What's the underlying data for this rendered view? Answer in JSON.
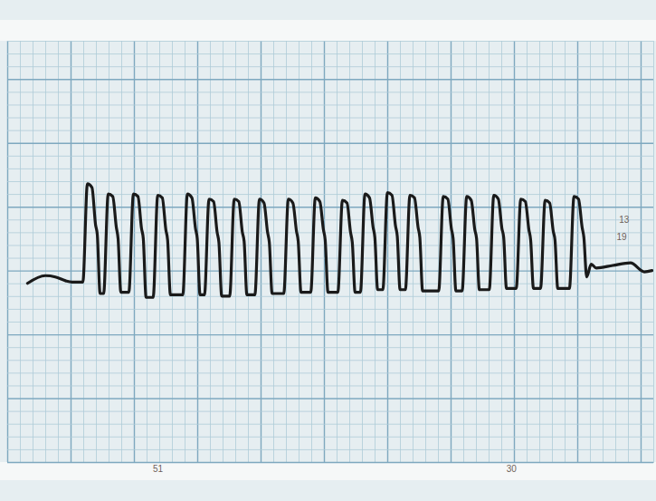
{
  "chart_data": {
    "type": "line",
    "x": [
      1.6,
      3.0,
      3.8,
      4.6,
      5.1,
      5.97,
      6.33,
      6.69,
      6.97,
      7.11,
      7.33,
      7.61,
      7.97,
      8.33,
      8.61,
      8.75,
      8.97,
      9.6,
      9.96,
      10.32,
      10.6,
      10.74,
      10.96,
      11.52,
      11.88,
      12.24,
      12.52,
      12.66,
      12.88,
      13.86,
      14.22,
      14.58,
      14.86,
      15.0,
      15.22,
      15.57,
      15.93,
      16.29,
      16.57,
      16.71,
      16.93,
      17.56,
      17.92,
      18.28,
      18.56,
      18.7,
      18.92,
      19.55,
      19.91,
      20.27,
      20.55,
      20.69,
      20.91,
      21.83,
      22.19,
      22.55,
      22.83,
      22.97,
      23.19,
      23.96,
      24.32,
      24.68,
      24.96,
      25.1,
      25.32,
      26.1,
      26.46,
      26.82,
      27.1,
      27.24,
      27.46,
      27.88,
      28.24,
      28.6,
      28.88,
      29.02,
      29.24,
      29.65,
      30.01,
      30.37,
      30.65,
      30.79,
      31.01,
      31.43,
      31.79,
      32.15,
      32.43,
      32.57,
      32.79,
      34.06,
      34.42,
      34.78,
      35.06,
      35.2,
      35.42,
      35.91,
      36.27,
      36.63,
      36.91,
      37.05,
      37.27,
      38.05,
      38.41,
      38.77,
      39.05,
      39.19,
      39.41,
      40.18,
      40.54,
      40.9,
      41.18,
      41.32,
      41.54,
      42.1,
      42.46,
      42.82,
      43.1,
      43.24,
      43.46,
      44.38,
      44.74,
      45.1,
      45.38,
      45.52,
      45.74,
      46.1,
      46.5,
      47.8,
      49.2,
      50.3,
      50.9
    ],
    "values": [
      14.0,
      14.6,
      14.5,
      14.2,
      14.1,
      14.1,
      21.8,
      21.5,
      18.6,
      17.8,
      13.2,
      13.2,
      21.0,
      20.8,
      18.4,
      17.5,
      13.3,
      13.3,
      21.0,
      20.8,
      18.3,
      17.5,
      12.9,
      12.9,
      20.9,
      20.7,
      18.2,
      17.4,
      13.1,
      13.1,
      21.0,
      20.7,
      18.3,
      17.5,
      13.1,
      13.1,
      20.6,
      20.4,
      18.0,
      17.2,
      13.0,
      13.0,
      20.6,
      20.4,
      18.0,
      17.3,
      13.1,
      13.1,
      20.6,
      20.3,
      18.0,
      17.2,
      13.2,
      13.2,
      20.6,
      20.3,
      18.1,
      17.3,
      13.3,
      13.3,
      20.7,
      20.4,
      18.2,
      17.4,
      13.3,
      13.3,
      20.5,
      20.3,
      18.0,
      17.2,
      13.3,
      13.3,
      21.0,
      20.7,
      18.4,
      17.6,
      13.5,
      13.5,
      21.1,
      20.9,
      18.5,
      17.7,
      13.5,
      13.5,
      20.9,
      20.7,
      18.4,
      17.6,
      13.4,
      13.4,
      20.8,
      20.6,
      18.3,
      17.5,
      13.4,
      13.4,
      20.8,
      20.5,
      18.2,
      17.5,
      13.5,
      13.5,
      20.9,
      20.6,
      18.3,
      17.6,
      13.6,
      13.6,
      20.6,
      20.4,
      18.2,
      17.4,
      13.6,
      13.6,
      20.5,
      20.3,
      18.1,
      17.4,
      13.6,
      13.6,
      20.8,
      20.6,
      18.4,
      17.6,
      14.5,
      15.5,
      15.2,
      15.4,
      15.6,
      14.9,
      15.0
    ],
    "color": "#1a1a1a",
    "xlim": [
      0,
      51
    ],
    "ylim": [
      0,
      33
    ],
    "xticks": [
      0,
      1,
      2,
      3,
      4,
      5,
      6,
      7,
      8,
      9,
      10,
      11,
      12,
      13,
      14,
      15,
      16,
      17,
      18,
      19,
      20,
      21,
      22,
      23,
      24,
      25,
      26,
      27,
      28,
      29,
      30,
      31,
      32,
      33,
      34,
      35,
      36,
      37,
      38,
      39,
      40,
      41,
      42,
      43,
      44,
      45,
      46,
      47,
      48,
      49,
      50,
      51
    ],
    "yticks": [
      0,
      1,
      2,
      3,
      4,
      5,
      6,
      7,
      8,
      9,
      10,
      11,
      12,
      13,
      14,
      15,
      16,
      17,
      18,
      19,
      20,
      21,
      22,
      23,
      24,
      25,
      26,
      27,
      28,
      29,
      30,
      31,
      32,
      33
    ],
    "grid": true,
    "tick_labels": false,
    "annotations": [
      {
        "text": "13",
        "x": 48.7,
        "y": 18.9
      },
      {
        "text": "19",
        "x": 48.5,
        "y": 17.6
      },
      {
        "text": "51",
        "x": 11.9,
        "y": -0.6
      },
      {
        "text": "30",
        "x": 39.8,
        "y": -0.6
      }
    ]
  }
}
